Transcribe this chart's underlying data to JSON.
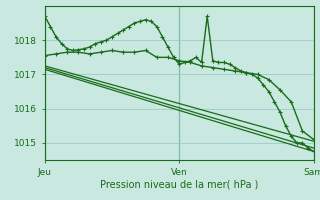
{
  "bg_color": "#c8e8e0",
  "plot_bg_color": "#c8e8e0",
  "grid_color": "#99cccc",
  "line_color": "#1a6b1a",
  "xlim": [
    0,
    48
  ],
  "ylim": [
    1014.5,
    1019.0
  ],
  "yticks": [
    1015,
    1016,
    1017,
    1018
  ],
  "xtick_labels": [
    "Jeu",
    "Ven",
    "Sam"
  ],
  "xtick_positions": [
    0,
    24,
    48
  ],
  "xlabel": "Pression niveau de la mer( hPa )",
  "series": [
    {
      "x": [
        0,
        1,
        2,
        3,
        4,
        5,
        6,
        7,
        8,
        9,
        10,
        11,
        12,
        13,
        14,
        15,
        16,
        17,
        18,
        19,
        20,
        21,
        22,
        23,
        24,
        25,
        26,
        27,
        28,
        29,
        30,
        31,
        32,
        33,
        34,
        35,
        36,
        37,
        38,
        39,
        40,
        41,
        42,
        43,
        44,
        45,
        46,
        47,
        48
      ],
      "y": [
        1018.7,
        1018.4,
        1018.1,
        1017.9,
        1017.75,
        1017.7,
        1017.72,
        1017.75,
        1017.8,
        1017.9,
        1017.95,
        1018.0,
        1018.1,
        1018.2,
        1018.3,
        1018.4,
        1018.5,
        1018.55,
        1018.6,
        1018.55,
        1018.4,
        1018.1,
        1017.8,
        1017.5,
        1017.3,
        1017.35,
        1017.4,
        1017.5,
        1017.35,
        1018.7,
        1017.4,
        1017.35,
        1017.35,
        1017.3,
        1017.2,
        1017.1,
        1017.05,
        1017.0,
        1016.9,
        1016.7,
        1016.5,
        1016.2,
        1015.9,
        1015.5,
        1015.2,
        1015.0,
        1015.0,
        1014.85,
        1014.75
      ],
      "with_markers": true,
      "lw": 1.0
    },
    {
      "x": [
        0,
        48
      ],
      "y": [
        1017.15,
        1014.75
      ],
      "with_markers": false,
      "lw": 0.9
    },
    {
      "x": [
        0,
        48
      ],
      "y": [
        1017.2,
        1014.85
      ],
      "with_markers": false,
      "lw": 0.9
    },
    {
      "x": [
        0,
        48
      ],
      "y": [
        1017.25,
        1015.05
      ],
      "with_markers": false,
      "lw": 0.9
    },
    {
      "x": [
        0,
        2,
        4,
        6,
        8,
        10,
        12,
        14,
        16,
        18,
        20,
        22,
        24,
        26,
        28,
        30,
        32,
        34,
        36,
        38,
        40,
        42,
        44,
        46,
        48
      ],
      "y": [
        1017.55,
        1017.6,
        1017.65,
        1017.65,
        1017.6,
        1017.65,
        1017.7,
        1017.65,
        1017.65,
        1017.7,
        1017.5,
        1017.5,
        1017.4,
        1017.35,
        1017.25,
        1017.2,
        1017.15,
        1017.1,
        1017.05,
        1017.0,
        1016.85,
        1016.55,
        1016.2,
        1015.35,
        1015.1
      ],
      "with_markers": true,
      "lw": 1.0
    }
  ]
}
